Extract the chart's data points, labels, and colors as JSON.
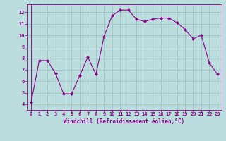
{
  "x": [
    0,
    1,
    2,
    3,
    4,
    5,
    6,
    7,
    8,
    9,
    10,
    11,
    12,
    13,
    14,
    15,
    16,
    17,
    18,
    19,
    20,
    21,
    22,
    23
  ],
  "y": [
    4.2,
    7.8,
    7.8,
    6.7,
    4.9,
    4.9,
    6.5,
    8.1,
    6.6,
    9.9,
    11.7,
    12.2,
    12.2,
    11.4,
    11.2,
    11.4,
    11.5,
    11.5,
    11.1,
    10.5,
    9.7,
    10.0,
    7.6,
    6.6
  ],
  "line_color": "#880088",
  "marker": "D",
  "marker_size": 2,
  "bg_color": "#bbdddd",
  "grid_color": "#99bbbb",
  "xlabel": "Windchill (Refroidissement éolien,°C)",
  "xlim": [
    -0.5,
    23.5
  ],
  "ylim": [
    3.5,
    12.7
  ],
  "yticks": [
    4,
    5,
    6,
    7,
    8,
    9,
    10,
    11,
    12
  ],
  "xticks": [
    0,
    1,
    2,
    3,
    4,
    5,
    6,
    7,
    8,
    9,
    10,
    11,
    12,
    13,
    14,
    15,
    16,
    17,
    18,
    19,
    20,
    21,
    22,
    23
  ],
  "font_color": "#880088",
  "tick_fontsize": 5,
  "xlabel_fontsize": 5.5
}
